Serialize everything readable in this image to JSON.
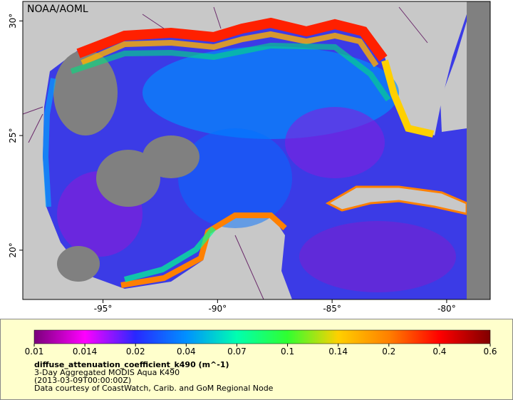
{
  "map": {
    "credit": "NOAA/AOML",
    "xlim": [
      -98.5,
      -78.1
    ],
    "ylim": [
      17.85,
      30.85
    ],
    "xticks": [
      {
        "value": -95,
        "label": "-95°"
      },
      {
        "value": -90,
        "label": "-90°"
      },
      {
        "value": -85,
        "label": "-85°"
      },
      {
        "value": -80,
        "label": "-80°"
      }
    ],
    "yticks": [
      {
        "value": 20,
        "label": "20°"
      },
      {
        "value": 25,
        "label": "25°"
      },
      {
        "value": 30,
        "label": "30°"
      }
    ],
    "colorbar": {
      "ticks": [
        0.01,
        0.014,
        0.02,
        0.04,
        0.07,
        0.1,
        0.14,
        0.2,
        0.4,
        0.6
      ],
      "colors": [
        "#7a007a",
        "#ff00ff",
        "#2828ff",
        "#0090ff",
        "#00ffb0",
        "#30ff30",
        "#ffd000",
        "#ff8000",
        "#ff0000",
        "#800000"
      ]
    },
    "variable": "diffuse_attenuation_coefficient_k490 (m^-1)",
    "product": "3-Day Aggregated MODIS Aqua K490",
    "time": "(2013-03-09T00:00:00Z)",
    "source": "Data courtesy of CoastWatch, Carib. and GoM Regional Node"
  }
}
